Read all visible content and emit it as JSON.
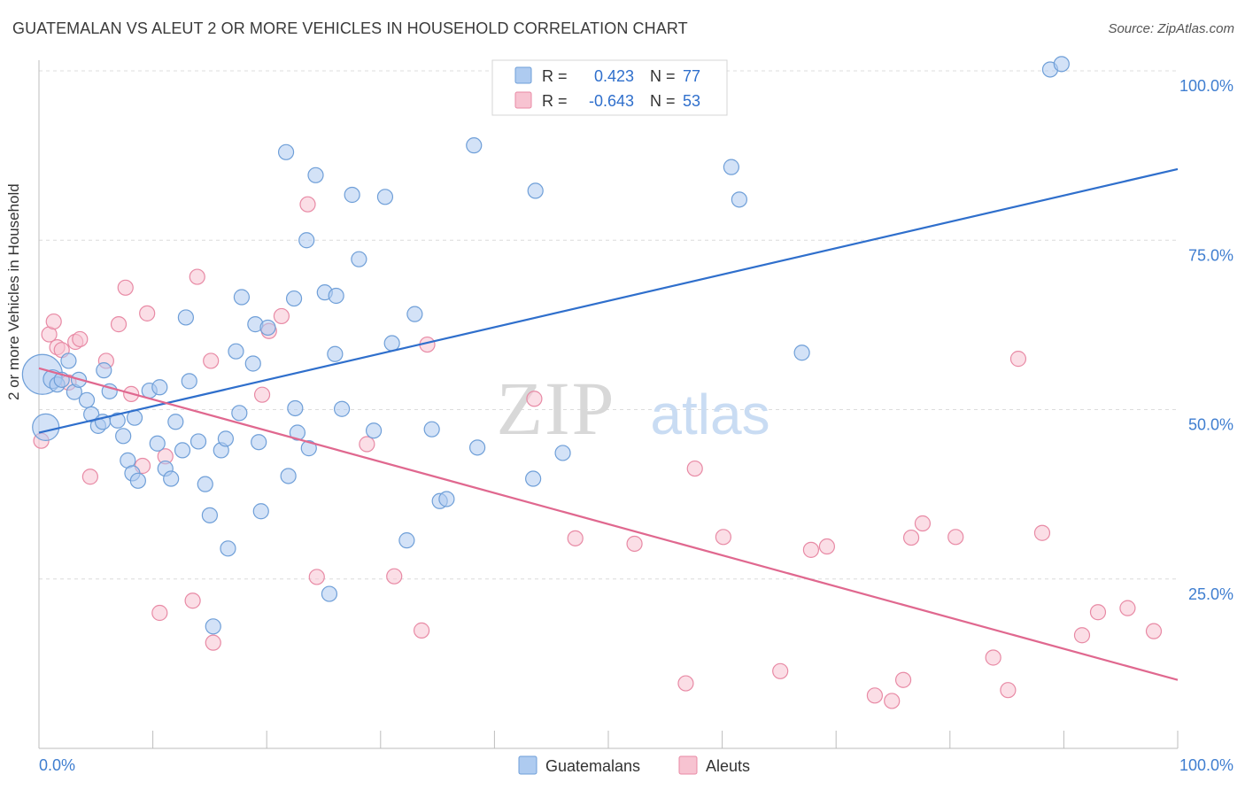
{
  "title": "GUATEMALAN VS ALEUT 2 OR MORE VEHICLES IN HOUSEHOLD CORRELATION CHART",
  "source": "Source: ZipAtlas.com",
  "watermark": {
    "zip": "ZIP",
    "atlas": "atlas"
  },
  "colors": {
    "blue_fill": "#aecbf0",
    "blue_stroke": "#6f9fd8",
    "blue_line": "#2f6fcc",
    "pink_fill": "#f7c3d1",
    "pink_stroke": "#e88aa5",
    "pink_line": "#e0688f",
    "tick_label": "#3f7ed0",
    "grid": "#dcdcdc"
  },
  "legend": {
    "rows": [
      {
        "r_label": "R =",
        "r_value": "0.423",
        "n_label": "N =",
        "n_value": "77"
      },
      {
        "r_label": "R =",
        "r_value": "-0.643",
        "n_label": "N =",
        "n_value": "53"
      }
    ]
  },
  "bottom_legend": [
    "Guatemalans",
    "Aleuts"
  ],
  "chart_data": {
    "type": "scatter",
    "xlabel": "",
    "ylabel": "2 or more Vehicles in Household",
    "xlim": [
      0,
      100
    ],
    "ylim": [
      0,
      100
    ],
    "x_tick_labels": [
      "0.0%",
      "100.0%"
    ],
    "y_tick_labels": [
      "25.0%",
      "50.0%",
      "75.0%",
      "100.0%"
    ],
    "y_ticks": [
      25,
      50,
      75,
      100
    ],
    "grid": true,
    "legend_position": "top-center",
    "series": [
      {
        "name": "Guatemalans",
        "r": 0.423,
        "n": 77,
        "trend": [
          [
            0,
            46.6
          ],
          [
            100,
            85.5
          ]
        ],
        "points": [
          [
            0.3,
            55.2,
            30
          ],
          [
            0.6,
            47.4,
            20
          ],
          [
            1.2,
            54.5,
            14
          ],
          [
            1.6,
            53.7,
            12
          ],
          [
            2.0,
            54.4,
            12
          ],
          [
            2.6,
            57.2,
            12
          ],
          [
            3.1,
            52.6,
            12
          ],
          [
            3.5,
            54.4,
            12
          ],
          [
            4.2,
            51.4,
            12
          ],
          [
            4.6,
            49.3,
            12
          ],
          [
            5.2,
            47.6,
            12
          ],
          [
            5.6,
            48.2,
            12
          ],
          [
            5.7,
            55.8,
            12
          ],
          [
            6.2,
            52.7,
            12
          ],
          [
            6.9,
            48.4,
            12
          ],
          [
            7.4,
            46.1,
            12
          ],
          [
            7.8,
            42.5,
            12
          ],
          [
            8.2,
            40.6,
            12
          ],
          [
            8.4,
            48.8,
            12
          ],
          [
            8.7,
            39.5,
            12
          ],
          [
            9.7,
            52.8,
            12
          ],
          [
            10.4,
            45.0,
            12
          ],
          [
            10.6,
            53.3,
            12
          ],
          [
            11.1,
            41.3,
            12
          ],
          [
            11.6,
            39.8,
            12
          ],
          [
            12.0,
            48.2,
            12
          ],
          [
            12.6,
            44.0,
            12
          ],
          [
            12.9,
            63.6,
            12
          ],
          [
            13.2,
            54.2,
            12
          ],
          [
            14.0,
            45.3,
            12
          ],
          [
            14.6,
            39.0,
            12
          ],
          [
            15.0,
            34.4,
            12
          ],
          [
            15.3,
            18.0,
            12
          ],
          [
            16.0,
            44.0,
            12
          ],
          [
            16.4,
            45.7,
            12
          ],
          [
            16.6,
            29.5,
            12
          ],
          [
            17.3,
            58.6,
            12
          ],
          [
            17.6,
            49.5,
            12
          ],
          [
            17.8,
            66.6,
            12
          ],
          [
            18.8,
            56.8,
            12
          ],
          [
            19.0,
            62.6,
            12
          ],
          [
            19.3,
            45.2,
            12
          ],
          [
            19.5,
            35.0,
            12
          ],
          [
            20.1,
            62.1,
            12
          ],
          [
            21.7,
            88.0,
            12
          ],
          [
            21.9,
            40.2,
            12
          ],
          [
            22.4,
            66.4,
            12
          ],
          [
            22.5,
            50.2,
            12
          ],
          [
            22.7,
            46.6,
            12
          ],
          [
            23.5,
            75.0,
            12
          ],
          [
            23.7,
            44.3,
            12
          ],
          [
            24.3,
            84.6,
            12
          ],
          [
            25.1,
            67.3,
            12
          ],
          [
            25.5,
            22.8,
            12
          ],
          [
            26.1,
            66.8,
            12
          ],
          [
            26.0,
            58.2,
            12
          ],
          [
            26.6,
            50.1,
            12
          ],
          [
            27.5,
            81.7,
            12
          ],
          [
            28.1,
            72.2,
            12
          ],
          [
            29.4,
            46.9,
            12
          ],
          [
            30.4,
            81.4,
            12
          ],
          [
            31.0,
            59.8,
            12
          ],
          [
            32.3,
            30.7,
            12
          ],
          [
            33.0,
            64.1,
            12
          ],
          [
            34.5,
            47.1,
            12
          ],
          [
            35.2,
            36.5,
            12
          ],
          [
            35.8,
            36.8,
            12
          ],
          [
            38.2,
            89.0,
            12
          ],
          [
            38.5,
            44.4,
            12
          ],
          [
            43.4,
            39.8,
            12
          ],
          [
            43.6,
            82.3,
            12
          ],
          [
            46.0,
            43.6,
            12
          ],
          [
            60.8,
            85.8,
            12
          ],
          [
            61.5,
            81.0,
            12
          ],
          [
            67.0,
            58.4,
            12
          ],
          [
            88.8,
            100.2,
            12
          ],
          [
            89.8,
            101.0,
            12
          ]
        ]
      },
      {
        "name": "Aleuts",
        "r": -0.643,
        "n": 53,
        "trend": [
          [
            0,
            56.1
          ],
          [
            100,
            10.1
          ]
        ],
        "points": [
          [
            0.2,
            45.4,
            12
          ],
          [
            0.9,
            61.1,
            12
          ],
          [
            1.3,
            63.0,
            12
          ],
          [
            1.6,
            59.2,
            12
          ],
          [
            2.0,
            58.8,
            12
          ],
          [
            2.6,
            54.0,
            12
          ],
          [
            3.2,
            60.0,
            12
          ],
          [
            3.6,
            60.4,
            12
          ],
          [
            4.5,
            40.1,
            12
          ],
          [
            5.9,
            57.2,
            12
          ],
          [
            7.0,
            62.6,
            12
          ],
          [
            7.6,
            68.0,
            12
          ],
          [
            8.1,
            52.3,
            12
          ],
          [
            9.1,
            41.7,
            12
          ],
          [
            9.5,
            64.2,
            12
          ],
          [
            10.6,
            20.0,
            12
          ],
          [
            11.1,
            43.1,
            12
          ],
          [
            13.5,
            21.8,
            12
          ],
          [
            13.9,
            69.6,
            12
          ],
          [
            15.1,
            57.2,
            12
          ],
          [
            15.3,
            15.6,
            12
          ],
          [
            19.6,
            52.2,
            12
          ],
          [
            20.2,
            61.6,
            12
          ],
          [
            21.3,
            63.8,
            12
          ],
          [
            23.6,
            80.3,
            12
          ],
          [
            24.4,
            25.3,
            12
          ],
          [
            28.8,
            44.9,
            12
          ],
          [
            31.2,
            25.4,
            12
          ],
          [
            33.6,
            17.4,
            12
          ],
          [
            34.1,
            59.6,
            12
          ],
          [
            43.5,
            51.6,
            12
          ],
          [
            47.1,
            31.0,
            12
          ],
          [
            52.3,
            30.2,
            12
          ],
          [
            56.8,
            9.6,
            12
          ],
          [
            57.6,
            41.3,
            12
          ],
          [
            60.1,
            31.2,
            12
          ],
          [
            65.1,
            11.4,
            12
          ],
          [
            67.8,
            29.3,
            12
          ],
          [
            69.2,
            29.8,
            12
          ],
          [
            73.4,
            7.8,
            12
          ],
          [
            74.9,
            7.0,
            12
          ],
          [
            75.9,
            10.1,
            12
          ],
          [
            76.6,
            31.1,
            12
          ],
          [
            77.6,
            33.2,
            12
          ],
          [
            80.5,
            31.2,
            12
          ],
          [
            83.8,
            13.4,
            12
          ],
          [
            85.1,
            8.6,
            12
          ],
          [
            86.0,
            57.5,
            12
          ],
          [
            88.1,
            31.8,
            12
          ],
          [
            91.6,
            16.7,
            12
          ],
          [
            93.0,
            20.1,
            12
          ],
          [
            95.6,
            20.7,
            12
          ],
          [
            97.9,
            17.3,
            12
          ]
        ]
      }
    ]
  }
}
